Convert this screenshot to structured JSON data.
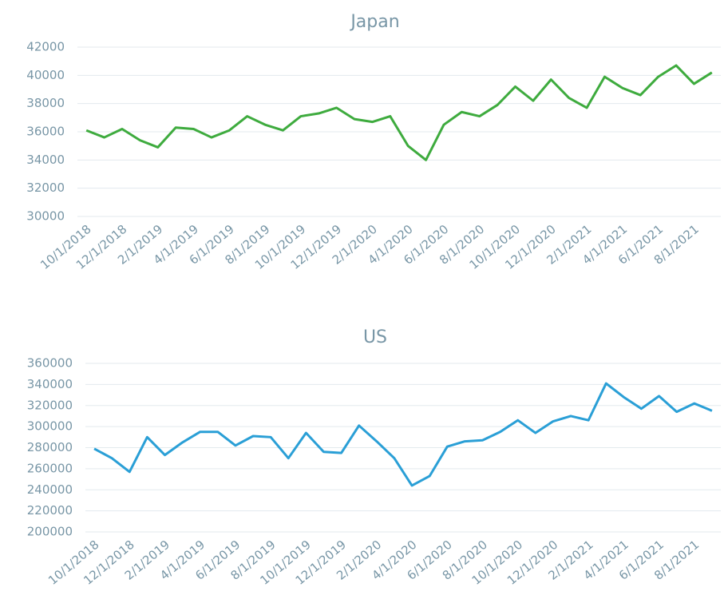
{
  "chart_data": [
    {
      "type": "line",
      "title": "Japan",
      "categories": [
        "10/1/2018",
        null,
        "12/1/2018",
        null,
        "2/1/2019",
        null,
        "4/1/2019",
        null,
        "6/1/2019",
        null,
        "8/1/2019",
        null,
        "10/1/2019",
        null,
        "12/1/2019",
        null,
        "2/1/2020",
        null,
        "4/1/2020",
        null,
        "6/1/2020",
        null,
        "8/1/2020",
        null,
        "10/1/2020",
        null,
        "12/1/2020",
        null,
        "2/1/2021",
        null,
        "4/1/2021",
        null,
        "6/1/2021",
        null,
        "8/1/2021",
        null
      ],
      "series": [
        {
          "name": "Japan",
          "color": "#3eab3e",
          "values": [
            36100,
            35600,
            36200,
            35400,
            34900,
            36300,
            36200,
            35600,
            36100,
            37100,
            36500,
            36100,
            37100,
            37300,
            37700,
            36900,
            36700,
            37100,
            35000,
            34000,
            36500,
            37400,
            37100,
            37900,
            39200,
            38200,
            39700,
            38400,
            37700,
            39900,
            39100,
            38600,
            39900,
            40700,
            39400,
            40200
          ]
        }
      ],
      "ylim": [
        30000,
        42000
      ],
      "yticks": [
        30000,
        32000,
        34000,
        36000,
        38000,
        40000,
        42000
      ],
      "grid": true
    },
    {
      "type": "line",
      "title": "US",
      "categories": [
        "10/1/2018",
        null,
        "12/1/2018",
        null,
        "2/1/2019",
        null,
        "4/1/2019",
        null,
        "6/1/2019",
        null,
        "8/1/2019",
        null,
        "10/1/2019",
        null,
        "12/1/2019",
        null,
        "2/1/2020",
        null,
        "4/1/2020",
        null,
        "6/1/2020",
        null,
        "8/1/2020",
        null,
        "10/1/2020",
        null,
        "12/1/2020",
        null,
        "2/1/2021",
        null,
        "4/1/2021",
        null,
        "6/1/2021",
        null,
        "8/1/2021",
        null
      ],
      "series": [
        {
          "name": "US",
          "color": "#2a9fd6",
          "values": [
            279000,
            270000,
            257000,
            290000,
            273000,
            285000,
            295000,
            295000,
            282000,
            291000,
            290000,
            270000,
            294000,
            276000,
            275000,
            301000,
            286000,
            270000,
            244000,
            253000,
            281000,
            286000,
            287000,
            295000,
            306000,
            294000,
            305000,
            310000,
            306000,
            341000,
            328000,
            317000,
            329000,
            314000,
            322000,
            315000
          ]
        }
      ],
      "ylim": [
        200000,
        360000
      ],
      "yticks": [
        200000,
        220000,
        240000,
        260000,
        280000,
        300000,
        320000,
        340000,
        360000
      ],
      "grid": true
    }
  ]
}
